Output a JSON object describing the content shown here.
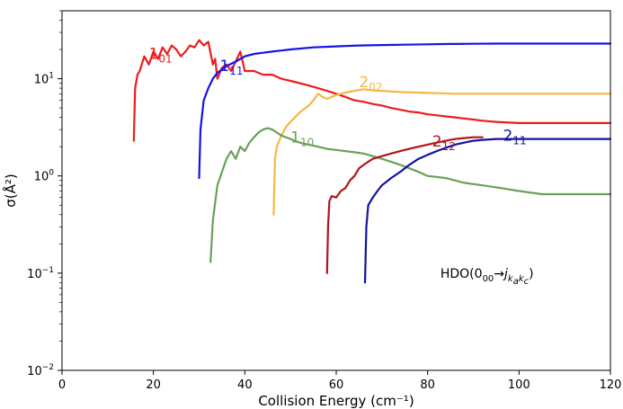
{
  "chart_data": {
    "type": "line",
    "xlabel": "Collision Energy (cm⁻¹)",
    "ylabel": "σ(Å²)",
    "xlim": [
      0,
      120
    ],
    "ylim": [
      0.01,
      50
    ],
    "yscale": "log",
    "grid": false,
    "x_ticks": [
      {
        "value": 0,
        "label": "0"
      },
      {
        "value": 20,
        "label": "20"
      },
      {
        "value": 40,
        "label": "40"
      },
      {
        "value": 60,
        "label": "60"
      },
      {
        "value": 80,
        "label": "80"
      },
      {
        "value": 100,
        "label": "100"
      },
      {
        "value": 120,
        "label": "120"
      }
    ],
    "y_ticks": [
      {
        "value": 0.01,
        "base": "10",
        "exp": "−2"
      },
      {
        "value": 0.1,
        "base": "10",
        "exp": "−1"
      },
      {
        "value": 1,
        "base": "10",
        "exp": "0"
      },
      {
        "value": 10,
        "base": "10",
        "exp": "1"
      }
    ],
    "annotation": {
      "main": "HDO(0",
      "sub00": "00",
      "arrow": "→",
      "j": "j",
      "ksub": "k",
      "asub": "a",
      "csub": "c",
      "close": ")",
      "x": 93,
      "y": 0.1
    },
    "series": [
      {
        "label_main": "1",
        "label_sub": "01",
        "color": "#ee1c1c",
        "label_x": 19,
        "label_y": 16,
        "x": [
          15.7,
          16.0,
          16.5,
          17.0,
          18.0,
          19.0,
          20.0,
          21.0,
          22.0,
          23.0,
          24.0,
          25.0,
          26.0,
          27.0,
          28.0,
          29.0,
          30.0,
          31.0,
          32.0,
          33.0,
          33.5,
          34.0,
          35.0,
          36.0,
          37.0,
          38.0,
          39.0,
          40.0,
          42.0,
          44.0,
          46.0,
          48.0,
          50.0,
          52.0,
          54.0,
          56.0,
          58.0,
          60.0,
          62.0,
          64.0,
          66.0,
          68.0,
          70.0,
          72.0,
          74.0,
          76.0,
          78.0,
          80.0,
          82.0,
          84.0,
          86.0,
          88.0,
          90.0,
          92.0,
          95.0,
          100.0,
          105.0,
          110.0,
          115.0,
          120.0
        ],
        "y": [
          2.3,
          8.0,
          11.0,
          12.0,
          17.0,
          14.0,
          19.0,
          16.0,
          21.0,
          18.0,
          22.0,
          20.0,
          17.0,
          19.0,
          22.0,
          21.0,
          25.0,
          22.0,
          24.0,
          14.0,
          16.0,
          10.0,
          13.0,
          14.0,
          12.0,
          15.0,
          19.0,
          12.0,
          12.0,
          11.0,
          11.0,
          10.0,
          9.5,
          9.0,
          8.5,
          8.0,
          7.5,
          7.0,
          6.5,
          6.0,
          5.8,
          5.5,
          5.3,
          5.0,
          4.8,
          4.6,
          4.5,
          4.3,
          4.2,
          4.1,
          4.0,
          3.9,
          3.8,
          3.7,
          3.6,
          3.5,
          3.5,
          3.5,
          3.5,
          3.5
        ]
      },
      {
        "label_main": "1",
        "label_sub": "11",
        "color": "#1414e6",
        "label_x": 34.5,
        "label_y": 12,
        "x": [
          30.0,
          30.3,
          31.0,
          32.0,
          33.0,
          34.0,
          35.0,
          36.0,
          38.0,
          40.0,
          42.0,
          44.0,
          46.0,
          48.0,
          50.0,
          55.0,
          60.0,
          65.0,
          70.0,
          75.0,
          80.0,
          85.0,
          90.0,
          95.0,
          100.0,
          110.0,
          120.0
        ],
        "y": [
          0.95,
          3.0,
          6.0,
          8.0,
          10.0,
          11.5,
          12.5,
          13.5,
          15.0,
          17.0,
          18.0,
          18.5,
          19.0,
          19.5,
          20.0,
          21.0,
          21.5,
          22.0,
          22.2,
          22.4,
          22.6,
          22.8,
          22.9,
          23.0,
          23.0,
          23.0,
          23.0
        ]
      },
      {
        "label_main": "2",
        "label_sub": "02",
        "color": "#f5b841",
        "label_x": 65,
        "label_y": 8.2,
        "x": [
          46.3,
          46.6,
          47.0,
          48.0,
          49.0,
          50.0,
          52.0,
          54.0,
          55.0,
          56.0,
          57.0,
          58.0,
          60.0,
          62.0,
          64.0,
          66.0,
          68.0,
          70.0,
          74.0,
          78.0,
          82.0,
          86.0,
          90.0,
          95.0,
          100.0,
          105.0,
          110.0,
          115.0,
          120.0
        ],
        "y": [
          0.4,
          1.5,
          2.0,
          2.6,
          3.2,
          3.6,
          4.5,
          5.3,
          6.0,
          7.0,
          6.5,
          6.2,
          6.8,
          7.2,
          7.5,
          7.8,
          7.6,
          7.5,
          7.3,
          7.2,
          7.1,
          7.0,
          7.0,
          7.0,
          7.0,
          7.0,
          7.0,
          7.0,
          7.0
        ]
      },
      {
        "label_main": "1",
        "label_sub": "10",
        "color": "#6aa05c",
        "label_x": 50,
        "label_y": 2.2,
        "x": [
          32.5,
          33.0,
          34.0,
          35.0,
          36.0,
          37.0,
          38.0,
          39.0,
          40.0,
          41.0,
          42.0,
          43.0,
          44.0,
          45.0,
          46.0,
          47.0,
          48.0,
          50.0,
          52.0,
          54.0,
          56.0,
          58.0,
          60.0,
          62.0,
          64.0,
          66.0,
          68.0,
          70.0,
          72.0,
          74.0,
          76.0,
          78.0,
          80.0,
          84.0,
          88.0,
          92.0,
          96.0,
          100.0,
          105.0,
          110.0,
          115.0,
          120.0
        ],
        "y": [
          0.13,
          0.35,
          0.8,
          1.1,
          1.5,
          1.8,
          1.5,
          2.0,
          1.8,
          2.2,
          2.5,
          2.8,
          3.0,
          3.1,
          3.0,
          2.8,
          2.6,
          2.4,
          2.2,
          2.1,
          2.0,
          1.9,
          1.85,
          1.8,
          1.75,
          1.7,
          1.6,
          1.5,
          1.4,
          1.3,
          1.2,
          1.1,
          1.0,
          0.95,
          0.85,
          0.8,
          0.75,
          0.7,
          0.65,
          0.65,
          0.65,
          0.65
        ]
      },
      {
        "label_main": "2",
        "label_sub": "12",
        "color": "#b5121b",
        "label_x": 81,
        "label_y": 2.0,
        "x": [
          58.0,
          58.2,
          58.5,
          59.0,
          60.0,
          61.0,
          62.0,
          63.0,
          64.0,
          65.0,
          66.0,
          67.0,
          68.0,
          70.0,
          72.0,
          74.0,
          76.0,
          78.0,
          80.0,
          82.0,
          84.0,
          86.0,
          88.0,
          90.0,
          92.0
        ],
        "y": [
          0.1,
          0.3,
          0.55,
          0.62,
          0.6,
          0.7,
          0.75,
          0.9,
          1.0,
          1.2,
          1.3,
          1.4,
          1.5,
          1.6,
          1.7,
          1.8,
          1.9,
          2.0,
          2.1,
          2.2,
          2.3,
          2.4,
          2.45,
          2.5,
          2.5
        ]
      },
      {
        "label_main": "2",
        "label_sub": "11",
        "color": "#13139d",
        "label_x": 96.5,
        "label_y": 2.3,
        "x": [
          66.3,
          66.6,
          67.0,
          68.0,
          69.0,
          70.0,
          72.0,
          74.0,
          76.0,
          78.0,
          80.0,
          82.0,
          84.0,
          86.0,
          88.0,
          90.0,
          92.0,
          95.0,
          100.0,
          105.0,
          110.0,
          115.0,
          120.0
        ],
        "y": [
          0.08,
          0.3,
          0.5,
          0.6,
          0.7,
          0.8,
          0.95,
          1.1,
          1.3,
          1.5,
          1.65,
          1.8,
          1.95,
          2.1,
          2.2,
          2.3,
          2.35,
          2.4,
          2.4,
          2.4,
          2.4,
          2.4,
          2.4
        ]
      }
    ]
  }
}
